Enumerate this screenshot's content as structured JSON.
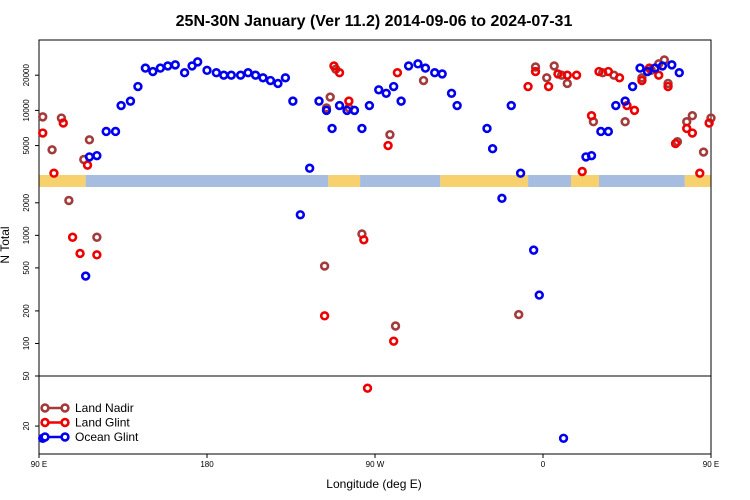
{
  "chart_data": {
    "type": "scatter",
    "title": "25N-30N January (Ver 11.2)   2014-09-06 to 2024-07-31",
    "xlabel": "Longitude (deg E)",
    "ylabel": "N Total",
    "xlim": [
      90,
      450
    ],
    "x_ticks": [
      {
        "value": 90,
        "label": "90 E"
      },
      {
        "value": 180,
        "label": "180"
      },
      {
        "value": 270,
        "label": "90 W"
      },
      {
        "value": 360,
        "label": "0"
      },
      {
        "value": 450,
        "label": "90 E"
      },
      {
        "value": 540,
        "label": "180"
      }
    ],
    "panels": [
      {
        "name": "upper",
        "ylim": [
          2800,
          40000
        ],
        "ticks": [
          5000,
          10000,
          20000
        ]
      },
      {
        "name": "middle",
        "ylim": [
          50,
          2800
        ],
        "ticks": [
          100,
          200,
          500,
          1000,
          2000
        ]
      },
      {
        "name": "lower",
        "ylim": [
          12,
          50
        ],
        "ticks": [
          20,
          50
        ]
      }
    ],
    "legend_position": "bottom-left",
    "series": [
      {
        "name": "Land Nadir",
        "color": "#a33b3b",
        "points": [
          [
            92,
            8800
          ],
          [
            97,
            4600
          ],
          [
            102,
            8600
          ],
          [
            106,
            2100
          ],
          [
            114,
            3800
          ],
          [
            117,
            5600
          ],
          [
            121,
            960
          ],
          [
            243,
            520
          ],
          [
            244,
            10500
          ],
          [
            246,
            13000
          ],
          [
            249,
            22500
          ],
          [
            256,
            10500
          ],
          [
            263,
            1030
          ],
          [
            278,
            6200
          ],
          [
            281,
            145
          ],
          [
            296,
            18000
          ],
          [
            347,
            185
          ],
          [
            356,
            23500
          ],
          [
            362,
            19000
          ],
          [
            366,
            24000
          ],
          [
            370,
            20000
          ],
          [
            373,
            17000
          ],
          [
            387,
            8000
          ],
          [
            392,
            21000
          ],
          [
            398,
            20000
          ],
          [
            404,
            8000
          ],
          [
            413,
            19000
          ],
          [
            418,
            22000
          ],
          [
            422,
            25000
          ],
          [
            425,
            27000
          ],
          [
            427,
            17000
          ],
          [
            432,
            5400
          ],
          [
            437,
            8000
          ],
          [
            440,
            9000
          ],
          [
            446,
            4400
          ],
          [
            450,
            8600
          ],
          [
            454,
            2100
          ],
          [
            459,
            3800
          ],
          [
            464,
            5600
          ],
          [
            468,
            960
          ]
        ]
      },
      {
        "name": "Land Glint",
        "color": "#ee0000",
        "points": [
          [
            92,
            6400
          ],
          [
            98,
            2900
          ],
          [
            103,
            7800
          ],
          [
            108,
            960
          ],
          [
            112,
            680
          ],
          [
            116,
            3400
          ],
          [
            121,
            660
          ],
          [
            243,
            180
          ],
          [
            248,
            24000
          ],
          [
            251,
            21000
          ],
          [
            256,
            12000
          ],
          [
            264,
            910
          ],
          [
            266,
            40
          ],
          [
            277,
            5000
          ],
          [
            280,
            105
          ],
          [
            282,
            21000
          ],
          [
            352,
            16000
          ],
          [
            356,
            21500
          ],
          [
            363,
            16000
          ],
          [
            368,
            20500
          ],
          [
            373,
            20000
          ],
          [
            378,
            20000
          ],
          [
            381,
            3000
          ],
          [
            386,
            9000
          ],
          [
            390,
            21500
          ],
          [
            395,
            21500
          ],
          [
            401,
            19000
          ],
          [
            405,
            11000
          ],
          [
            409,
            10000
          ],
          [
            413,
            18000
          ],
          [
            417,
            23000
          ],
          [
            422,
            20000
          ],
          [
            427,
            16000
          ],
          [
            431,
            5200
          ],
          [
            437,
            7000
          ],
          [
            440,
            6400
          ],
          [
            444,
            2900
          ],
          [
            449,
            7800
          ],
          [
            455,
            960
          ],
          [
            459,
            680
          ],
          [
            463,
            3400
          ],
          [
            468,
            660
          ]
        ]
      },
      {
        "name": "Ocean Glint",
        "color": "#0000ee",
        "points": [
          [
            92,
            16
          ],
          [
            115,
            420
          ],
          [
            117,
            4000
          ],
          [
            121,
            4100
          ],
          [
            126,
            6600
          ],
          [
            131,
            6600
          ],
          [
            134,
            11000
          ],
          [
            139,
            12000
          ],
          [
            143,
            16000
          ],
          [
            147,
            23000
          ],
          [
            151,
            21500
          ],
          [
            155,
            23000
          ],
          [
            159,
            24000
          ],
          [
            163,
            24500
          ],
          [
            168,
            21000
          ],
          [
            172,
            24000
          ],
          [
            175,
            26000
          ],
          [
            180,
            22000
          ],
          [
            185,
            21000
          ],
          [
            189,
            20000
          ],
          [
            193,
            20000
          ],
          [
            198,
            20000
          ],
          [
            202,
            21000
          ],
          [
            206,
            20000
          ],
          [
            210,
            19000
          ],
          [
            214,
            18000
          ],
          [
            218,
            17000
          ],
          [
            222,
            19000
          ],
          [
            226,
            12000
          ],
          [
            230,
            1550
          ],
          [
            235,
            3200
          ],
          [
            240,
            12000
          ],
          [
            244,
            10000
          ],
          [
            247,
            7000
          ],
          [
            251,
            11000
          ],
          [
            255,
            10000
          ],
          [
            259,
            10000
          ],
          [
            263,
            7000
          ],
          [
            267,
            11000
          ],
          [
            272,
            15000
          ],
          [
            276,
            14000
          ],
          [
            280,
            16000
          ],
          [
            284,
            12000
          ],
          [
            288,
            24000
          ],
          [
            293,
            25000
          ],
          [
            297,
            23000
          ],
          [
            302,
            21000
          ],
          [
            306,
            20500
          ],
          [
            311,
            14000
          ],
          [
            314,
            11000
          ],
          [
            330,
            7000
          ],
          [
            333,
            4700
          ],
          [
            338,
            2200
          ],
          [
            343,
            11000
          ],
          [
            348,
            2900
          ],
          [
            355,
            730
          ],
          [
            358,
            280
          ],
          [
            371,
            16
          ],
          [
            383,
            4000
          ],
          [
            386,
            4100
          ],
          [
            391,
            6600
          ],
          [
            395,
            6600
          ],
          [
            399,
            11000
          ],
          [
            404,
            12000
          ],
          [
            408,
            16000
          ],
          [
            412,
            23000
          ],
          [
            416,
            21500
          ],
          [
            420,
            23000
          ],
          [
            424,
            24000
          ],
          [
            429,
            24500
          ],
          [
            433,
            21000
          ]
        ]
      }
    ],
    "coverage_bands": [
      {
        "x0": 90,
        "x1": 115,
        "color": "#f7d16d"
      },
      {
        "x0": 115,
        "x1": 245,
        "color": "#a6bde0"
      },
      {
        "x0": 245,
        "x1": 262,
        "color": "#f7d16d"
      },
      {
        "x0": 262,
        "x1": 305,
        "color": "#a6bde0"
      },
      {
        "x0": 305,
        "x1": 352,
        "color": "#f7d16d"
      },
      {
        "x0": 352,
        "x1": 375,
        "color": "#a6bde0"
      },
      {
        "x0": 375,
        "x1": 390,
        "color": "#f7d16d"
      },
      {
        "x0": 390,
        "x1": 436,
        "color": "#a6bde0"
      },
      {
        "x0": 436,
        "x1": 450,
        "color": "#f7d16d"
      }
    ]
  }
}
